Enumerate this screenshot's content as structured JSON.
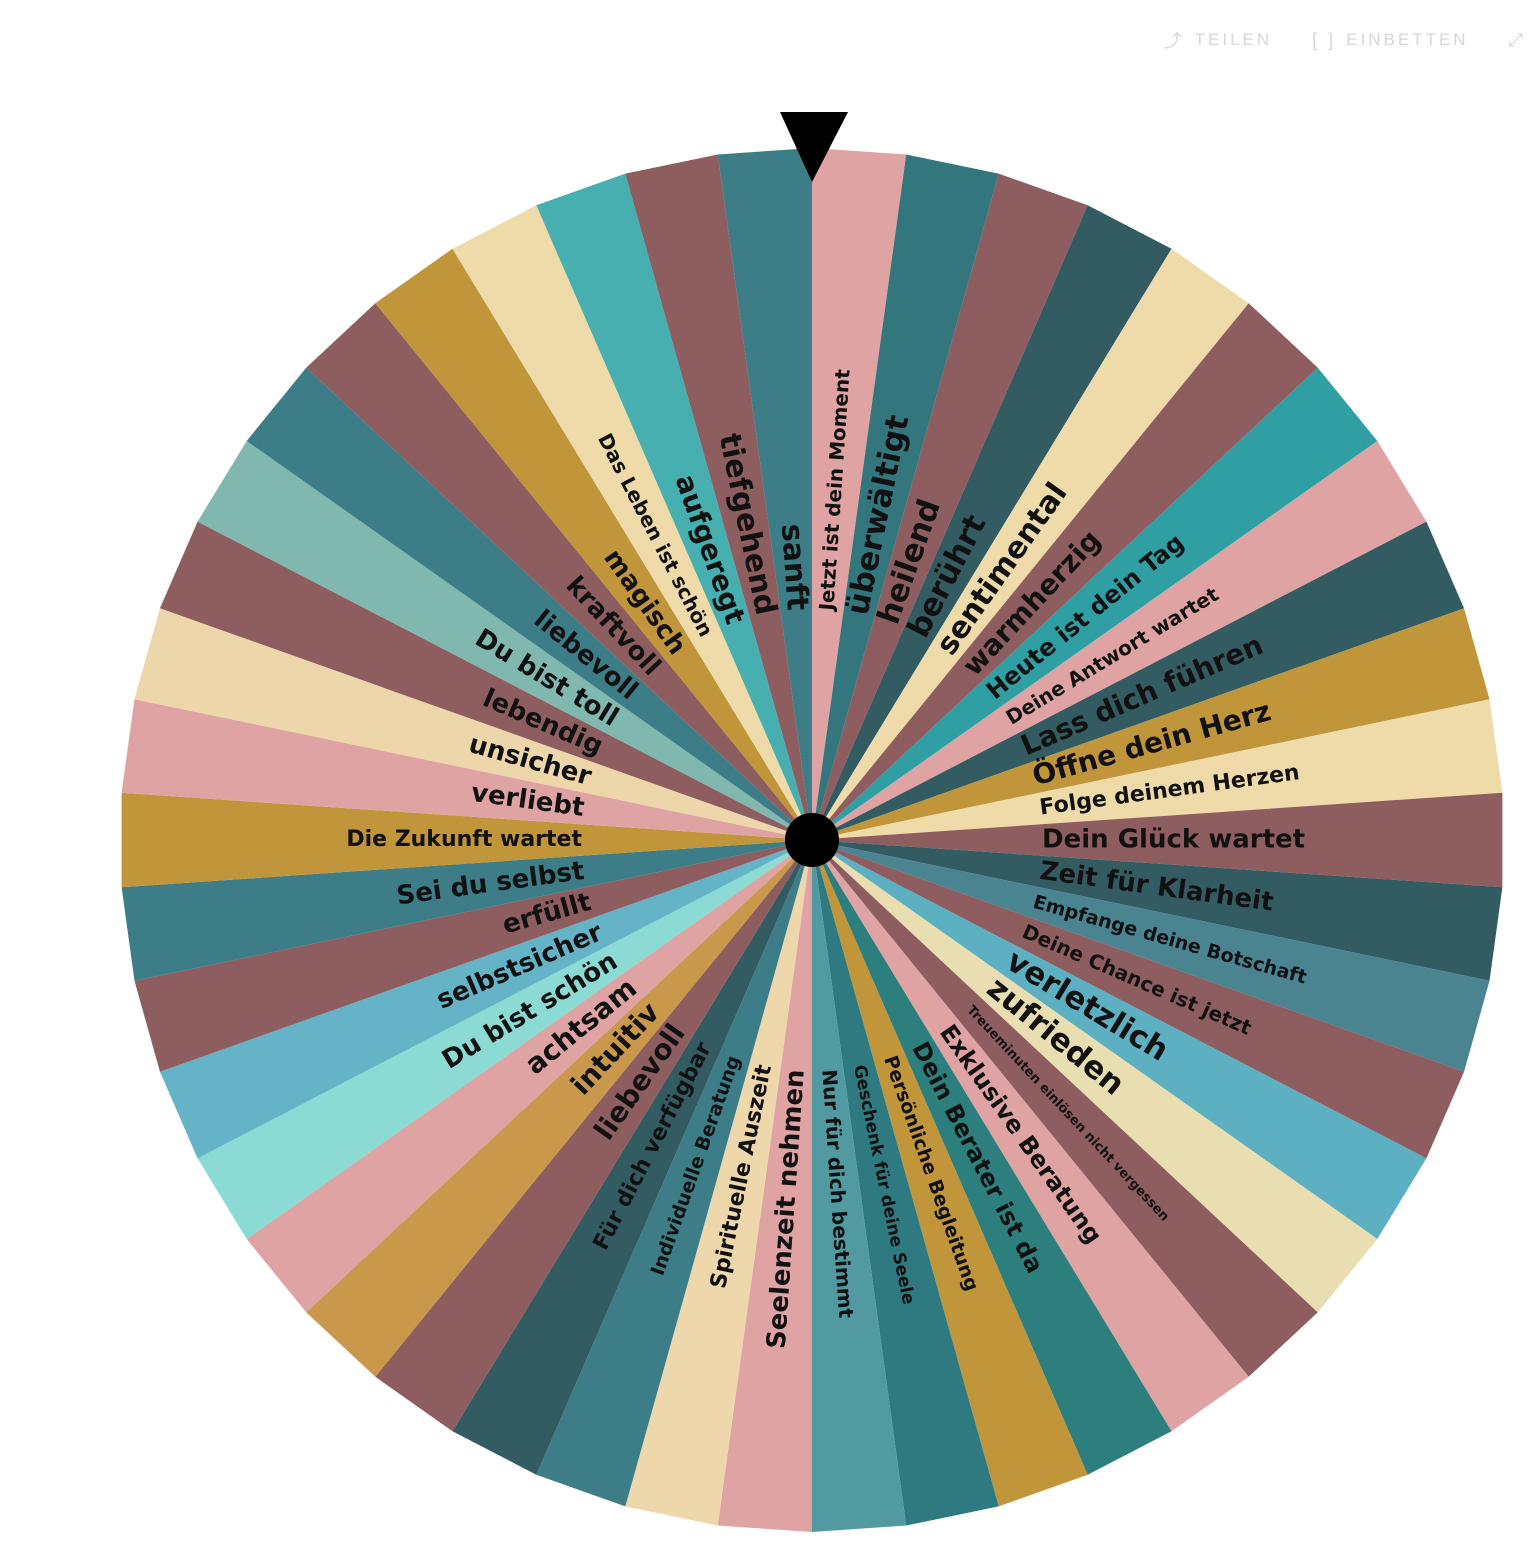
{
  "toolbar": {
    "share_icon": "share-icon",
    "share_label": "TEILEN",
    "embed_icon": "embed-icon",
    "embed_label": "EINBETTEN",
    "fullscreen_icon": "fullscreen-icon"
  },
  "wheel": {
    "pointer_color": "#000000",
    "hub_color": "#000000",
    "segments": [
      {
        "label": "Jetzt ist dein Moment",
        "color": "#dfa3a4",
        "size": 20
      },
      {
        "label": "überwältigt",
        "color": "#34767d",
        "size": 31
      },
      {
        "label": "heilend",
        "color": "#8e5d5f",
        "size": 31
      },
      {
        "label": "berührt",
        "color": "#335b62",
        "size": 31
      },
      {
        "label": "sentimental",
        "color": "#efdba9",
        "size": 30
      },
      {
        "label": "warmherzig",
        "color": "#8e5d5f",
        "size": 28
      },
      {
        "label": "Heute ist dein Tag",
        "color": "#2f9fa3",
        "size": 24
      },
      {
        "label": "Deine Antwort wartet",
        "color": "#dfa3a4",
        "size": 20
      },
      {
        "label": "Lass dich führen",
        "color": "#335b62",
        "size": 28
      },
      {
        "label": "Öffne dein Herz",
        "color": "#c1963a",
        "size": 28
      },
      {
        "label": "Folge deinem Herzen",
        "color": "#efdba9",
        "size": 22
      },
      {
        "label": "Dein Glück wartet",
        "color": "#8e5d5f",
        "size": 26
      },
      {
        "label": "Zeit für Klarheit",
        "color": "#335b62",
        "size": 26
      },
      {
        "label": "Empfange deine Botschaft",
        "color": "#4b8491",
        "size": 19
      },
      {
        "label": "Deine Chance ist jetzt",
        "color": "#8e5d5f",
        "size": 20
      },
      {
        "label": "verletzlich",
        "color": "#5db0c1",
        "size": 31
      },
      {
        "label": "zufrieden",
        "color": "#e8deb2",
        "size": 31
      },
      {
        "label": "Treueminuten einlösen nicht vergessen",
        "color": "#8e5d5f",
        "size": 13
      },
      {
        "label": "Exklusive Beratung",
        "color": "#dfa3a4",
        "size": 24
      },
      {
        "label": "Dein Berater ist da",
        "color": "#2d7f7e",
        "size": 24
      },
      {
        "label": "Persönliche Begleitung",
        "color": "#c1963a",
        "size": 19
      },
      {
        "label": "Geschenk für deine Seele",
        "color": "#2f7a80",
        "size": 17
      },
      {
        "label": "Nur für dich bestimmt",
        "color": "#529aa1",
        "size": 20
      },
      {
        "label": "Seelenzeit nehmen",
        "color": "#dfa3a4",
        "size": 26
      },
      {
        "label": "Spirituelle Auszeit",
        "color": "#eed7aa",
        "size": 22
      },
      {
        "label": "Individuelle Beratung",
        "color": "#3d7d87",
        "size": 19
      },
      {
        "label": "Für dich verfügbar",
        "color": "#335b62",
        "size": 22
      },
      {
        "label": "liebevoll",
        "color": "#8e5d5f",
        "size": 28
      },
      {
        "label": "intuitiv",
        "color": "#c9984a",
        "size": 28
      },
      {
        "label": "achtsam",
        "color": "#dfa3a4",
        "size": 28
      },
      {
        "label": "Du bist schön",
        "color": "#8cdad4",
        "size": 26
      },
      {
        "label": "selbstsicher",
        "color": "#65b3c6",
        "size": 26
      },
      {
        "label": "erfüllt",
        "color": "#8e5d5f",
        "size": 26
      },
      {
        "label": "Sei du selbst",
        "color": "#3d7d87",
        "size": 26
      },
      {
        "label": "Die Zukunft wartet",
        "color": "#c1963a",
        "size": 22
      },
      {
        "label": "verliebt",
        "color": "#dfa3a4",
        "size": 26
      },
      {
        "label": "unsicher",
        "color": "#ecd6aa",
        "size": 26
      },
      {
        "label": "lebendig",
        "color": "#8e5d5f",
        "size": 26
      },
      {
        "label": "Du bist toll",
        "color": "#80b8b0",
        "size": 26
      },
      {
        "label": "liebevoll",
        "color": "#3d7d87",
        "size": 26
      },
      {
        "label": "kraftvoll",
        "color": "#8e5d5f",
        "size": 26
      },
      {
        "label": "magisch",
        "color": "#c1963a",
        "size": 26
      },
      {
        "label": "Das Leben ist schön",
        "color": "#efdba9",
        "size": 20
      },
      {
        "label": "aufgeregt",
        "color": "#48afb0",
        "size": 28
      },
      {
        "label": "tiefgehend",
        "color": "#8e5d5f",
        "size": 30
      },
      {
        "label": "sanft",
        "color": "#3d7d87",
        "size": 30
      }
    ]
  }
}
